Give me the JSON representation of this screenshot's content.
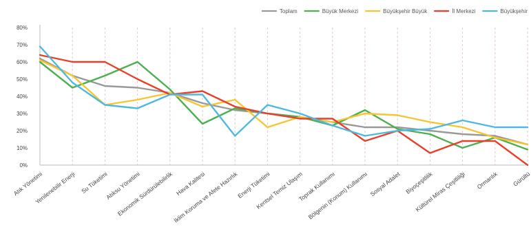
{
  "chart_data": {
    "type": "line",
    "title": "",
    "xlabel": "",
    "ylabel": "",
    "ylim": [
      0,
      80
    ],
    "yticks": [
      "0%",
      "10%",
      "20%",
      "30%",
      "40%",
      "50%",
      "60%",
      "70%",
      "80%"
    ],
    "grid": "vertical dashed",
    "legend_position": "top-right",
    "categories": [
      "Atık Yönetimi",
      "Yenilenebilir Enerji",
      "Su Tüketimi",
      "Atıksu Yönetimi",
      "Ekonomik Sürdürülebilirlik",
      "Hava Kalitesi",
      "İklim Koruma ve Afete Hazırlık",
      "Enerji Tüketimi",
      "Kentsel Temiz Ulaşım",
      "Toprak Kullanımı",
      "Bölgenin (Konum) Kullanımı",
      "Sosyal Adalet",
      "Biyoçeşitlilik",
      "Kültürel Miras Çeşitliliği",
      "Ormanlık",
      "Gürültü"
    ],
    "series": [
      {
        "name": "Toplam",
        "color": "#999999",
        "values": [
          62,
          52,
          46,
          45,
          42,
          36,
          32,
          30,
          28,
          25,
          22,
          22,
          20,
          18,
          17,
          12
        ]
      },
      {
        "name": "Büyük Merkezi",
        "color": "#4caf50",
        "values": [
          60,
          45,
          52,
          60,
          44,
          24,
          33,
          30,
          28,
          23,
          32,
          21,
          18,
          10,
          16,
          9
        ]
      },
      {
        "name": "Büyükşehir Büyük",
        "color": "#f7c531",
        "values": [
          61,
          52,
          35,
          38,
          42,
          34,
          38,
          22,
          28,
          25,
          30,
          29,
          25,
          22,
          16,
          12
        ]
      },
      {
        "name": "İl Merkezi",
        "color": "#e8402a",
        "values": [
          64,
          60,
          60,
          50,
          41,
          43,
          34,
          30,
          27,
          27,
          14,
          20,
          7,
          14,
          14,
          0
        ]
      },
      {
        "name": "Büyükşehir",
        "color": "#4fb8e0",
        "values": [
          69,
          48,
          35,
          33,
          41,
          41,
          17,
          35,
          30,
          23,
          17,
          20,
          21,
          26,
          22,
          22
        ]
      }
    ]
  }
}
